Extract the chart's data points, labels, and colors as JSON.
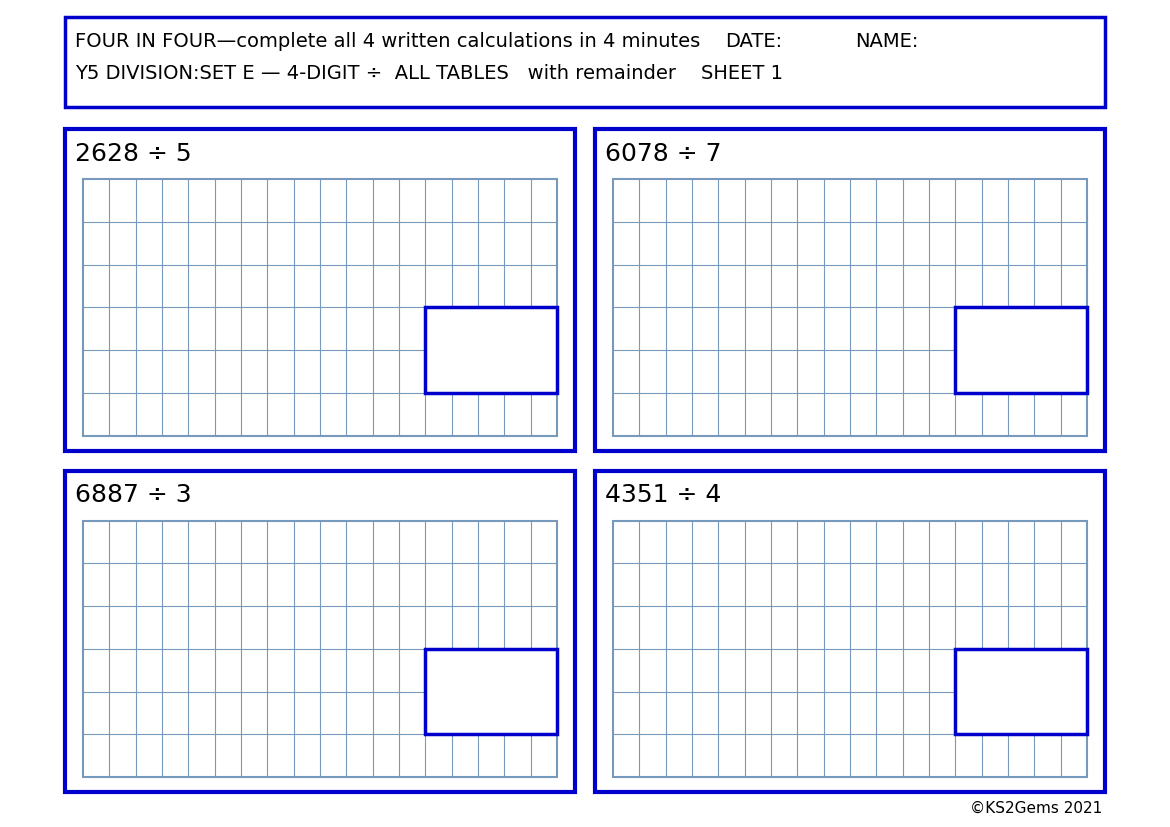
{
  "title_line1": "FOUR IN FOUR—complete all 4 written calculations in 4 minutes",
  "title_date": "DATE:",
  "title_name": "NAME:",
  "title_line2": "Y5 DIVISION:SET E — 4-DIGIT ÷  ALL TABLES   with remainder    SHEET 1",
  "problems": [
    "2628 ÷ 5",
    "6078 ÷ 7",
    "6887 ÷ 3",
    "4351 ÷ 4"
  ],
  "border_color": "#0000CC",
  "grid_color": "#7799BB",
  "background": "#FFFFFF",
  "grid_cols": 18,
  "grid_rows": 6,
  "answer_cols": 5,
  "answer_rows": 2,
  "copyright": "©KS2Gems 2021",
  "header_font_size": 14,
  "problem_font_size": 18,
  "copyright_font_size": 11
}
